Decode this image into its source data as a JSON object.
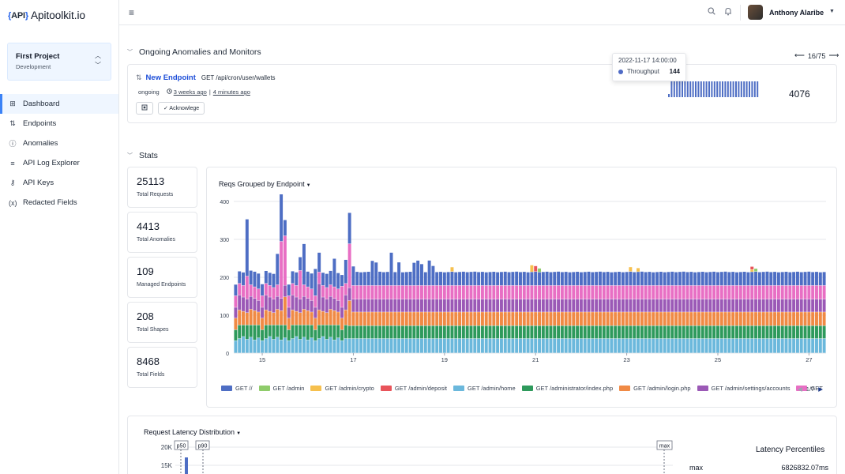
{
  "app": {
    "logo_mark_left": "{",
    "logo_mark_mid": "API",
    "logo_mark_right": "}",
    "logo_text": "Apitoolkit.io"
  },
  "project": {
    "name": "First Project",
    "environment": "Development"
  },
  "nav": [
    {
      "label": "Dashboard",
      "icon": "grid-icon",
      "glyph": "⊞",
      "active": true
    },
    {
      "label": "Endpoints",
      "icon": "arrows-updown-icon",
      "glyph": "⇅",
      "active": false
    },
    {
      "label": "Anomalies",
      "icon": "alert-circle-icon",
      "glyph": "ⓘ",
      "active": false
    },
    {
      "label": "API Log Explorer",
      "icon": "list-icon",
      "glyph": "≡",
      "active": false
    },
    {
      "label": "API Keys",
      "icon": "key-icon",
      "glyph": "⚷",
      "active": false
    },
    {
      "label": "Redacted Fields",
      "icon": "variable-icon",
      "glyph": "(x)",
      "active": false
    }
  ],
  "topbar": {
    "user_name": "Anthony Alaribe"
  },
  "anomalies_section": {
    "title": "Ongoing Anomalies and Monitors",
    "pager": "16/75",
    "card": {
      "type": "New Endpoint",
      "method_path": "GET /api/cron/user/wallets",
      "status": "ongoing",
      "first_seen": "3 weeks ago",
      "separator": "|",
      "last_seen": "4 minutes ago",
      "ack_label": "✓ Acknowlege",
      "total": "4076",
      "spark_values": [
        1,
        5,
        5,
        5,
        5,
        5,
        5,
        5,
        5,
        5,
        5,
        5,
        5,
        5,
        5,
        5,
        5,
        5,
        5,
        5,
        5,
        5,
        5,
        5,
        5,
        5,
        5,
        5,
        5,
        5,
        5,
        5,
        5,
        5
      ]
    },
    "tooltip": {
      "date": "2022-11-17 14:00:00",
      "series": "Throughput",
      "value": "144"
    }
  },
  "stats_section": {
    "title": "Stats",
    "cards": [
      {
        "value": "25113",
        "label": "Total Requests"
      },
      {
        "value": "4413",
        "label": "Total Anomalies"
      },
      {
        "value": "109",
        "label": "Managed Endpoints"
      },
      {
        "value": "208",
        "label": "Total Shapes"
      },
      {
        "value": "8468",
        "label": "Total Fields"
      }
    ]
  },
  "chart_select_label": "Reqs Grouped by Endpoint",
  "chart_data": {
    "type": "bar",
    "stacked": true,
    "ylim": [
      0,
      400
    ],
    "y_ticks": [
      0,
      100,
      200,
      300,
      400
    ],
    "x_ticks": [
      {
        "index": 7,
        "label": "15"
      },
      {
        "index": 31,
        "label": "17"
      },
      {
        "index": 55,
        "label": "19"
      },
      {
        "index": 79,
        "label": "21"
      },
      {
        "index": 103,
        "label": "23"
      },
      {
        "index": 127,
        "label": "25"
      },
      {
        "index": 151,
        "label": "27"
      }
    ],
    "bar_count": 156,
    "grid": true,
    "legend_position": "bottom",
    "legend_page": "1/7",
    "series": [
      {
        "name": "GET /admin/home",
        "color": "#6bb8dc",
        "base": 38
      },
      {
        "name": "GET /administrator/index.php",
        "color": "#2e9a5c",
        "base": 34
      },
      {
        "name": "GET /admin/login.php",
        "color": "#f08a45",
        "base": 36
      },
      {
        "name": "GET /admin/settings/accounts",
        "color": "#9b59b6",
        "base": 34
      },
      {
        "name": "GET /admin/cron",
        "color": "#e86fc4",
        "base": 36
      },
      {
        "name": "GET //",
        "color": "#4e6ec4",
        "base": 36
      },
      {
        "name": "GET /admin",
        "color": "#8fcc6b",
        "base": 0
      },
      {
        "name": "GET /admin/crypto",
        "color": "#f6c04e",
        "base": 0
      },
      {
        "name": "GET /admin/deposit",
        "color": "#e8545a",
        "base": 0
      }
    ],
    "spikes": [
      {
        "index": 3,
        "series": "GET //",
        "add": 115
      },
      {
        "index": 3,
        "series": "GET /admin/cron",
        "add": 30
      },
      {
        "index": 11,
        "series": "GET //",
        "add": 45
      },
      {
        "index": 12,
        "series": "GET /admin/cron",
        "add": 120
      },
      {
        "index": 12,
        "series": "GET //",
        "add": 110
      },
      {
        "index": 13,
        "series": "GET /admin/login.php",
        "add": 40
      },
      {
        "index": 13,
        "series": "GET /admin/cron",
        "add": 100
      },
      {
        "index": 17,
        "series": "GET /admin/cron",
        "add": 45
      },
      {
        "index": 18,
        "series": "GET //",
        "add": 70
      },
      {
        "index": 21,
        "series": "GET //",
        "add": 40
      },
      {
        "index": 22,
        "series": "GET /admin/settings/accounts",
        "add": 30
      },
      {
        "index": 22,
        "series": "GET //",
        "add": 20
      },
      {
        "index": 26,
        "series": "GET //",
        "add": 35
      },
      {
        "index": 28,
        "series": "GET /admin/cron",
        "add": 25
      },
      {
        "index": 29,
        "series": "GET //",
        "add": 30
      },
      {
        "index": 30,
        "series": "GET /admin/cron",
        "add": 80
      },
      {
        "index": 30,
        "series": "GET //",
        "add": 45
      },
      {
        "index": 30,
        "series": "GET /admin/login.php",
        "add": 30
      },
      {
        "index": 31,
        "series": "GET //",
        "add": 15
      },
      {
        "index": 36,
        "series": "GET //",
        "add": 30
      },
      {
        "index": 37,
        "series": "GET //",
        "add": 25
      },
      {
        "index": 41,
        "series": "GET //",
        "add": 50
      },
      {
        "index": 43,
        "series": "GET //",
        "add": 25
      },
      {
        "index": 47,
        "series": "GET //",
        "add": 25
      },
      {
        "index": 48,
        "series": "GET //",
        "add": 30
      },
      {
        "index": 49,
        "series": "GET //",
        "add": 20
      },
      {
        "index": 51,
        "series": "GET //",
        "add": 30
      },
      {
        "index": 52,
        "series": "GET //",
        "add": 15
      },
      {
        "index": 57,
        "series": "GET /admin/crypto",
        "add": 12
      },
      {
        "index": 78,
        "series": "GET /admin/crypto",
        "add": 18
      },
      {
        "index": 79,
        "series": "GET /admin/deposit",
        "add": 15
      },
      {
        "index": 80,
        "series": "GET /admin",
        "add": 10
      },
      {
        "index": 104,
        "series": "GET /admin/crypto",
        "add": 12
      },
      {
        "index": 106,
        "series": "GET /admin/crypto",
        "add": 10
      },
      {
        "index": 136,
        "series": "GET /admin/deposit",
        "add": 8
      },
      {
        "index": 136,
        "series": "GET /admin/crypto",
        "add": 6
      },
      {
        "index": 137,
        "series": "GET /admin",
        "add": 8
      }
    ]
  },
  "legend": [
    {
      "name": "GET //",
      "color": "#4e6ec4"
    },
    {
      "name": "GET /admin",
      "color": "#8fcc6b"
    },
    {
      "name": "GET /admin/crypto",
      "color": "#f6c04e"
    },
    {
      "name": "GET /admin/deposit",
      "color": "#e8545a"
    },
    {
      "name": "GET /admin/home",
      "color": "#6bb8dc"
    },
    {
      "name": "GET /administrator/index.php",
      "color": "#2e9a5c"
    },
    {
      "name": "GET /admin/login.php",
      "color": "#f08a45"
    },
    {
      "name": "GET /admin/settings/accounts",
      "color": "#9b59b6"
    },
    {
      "name": "GET",
      "color": "#e86fc4"
    }
  ],
  "latency": {
    "select_label": "Request Latency Distribution",
    "y_ticks": [
      "20K",
      "15K"
    ],
    "markers": [
      "p50",
      "p90",
      "max"
    ],
    "percentiles_title": "Latency Percentiles",
    "max_label": "max",
    "max_value": "6826832.07ms"
  }
}
